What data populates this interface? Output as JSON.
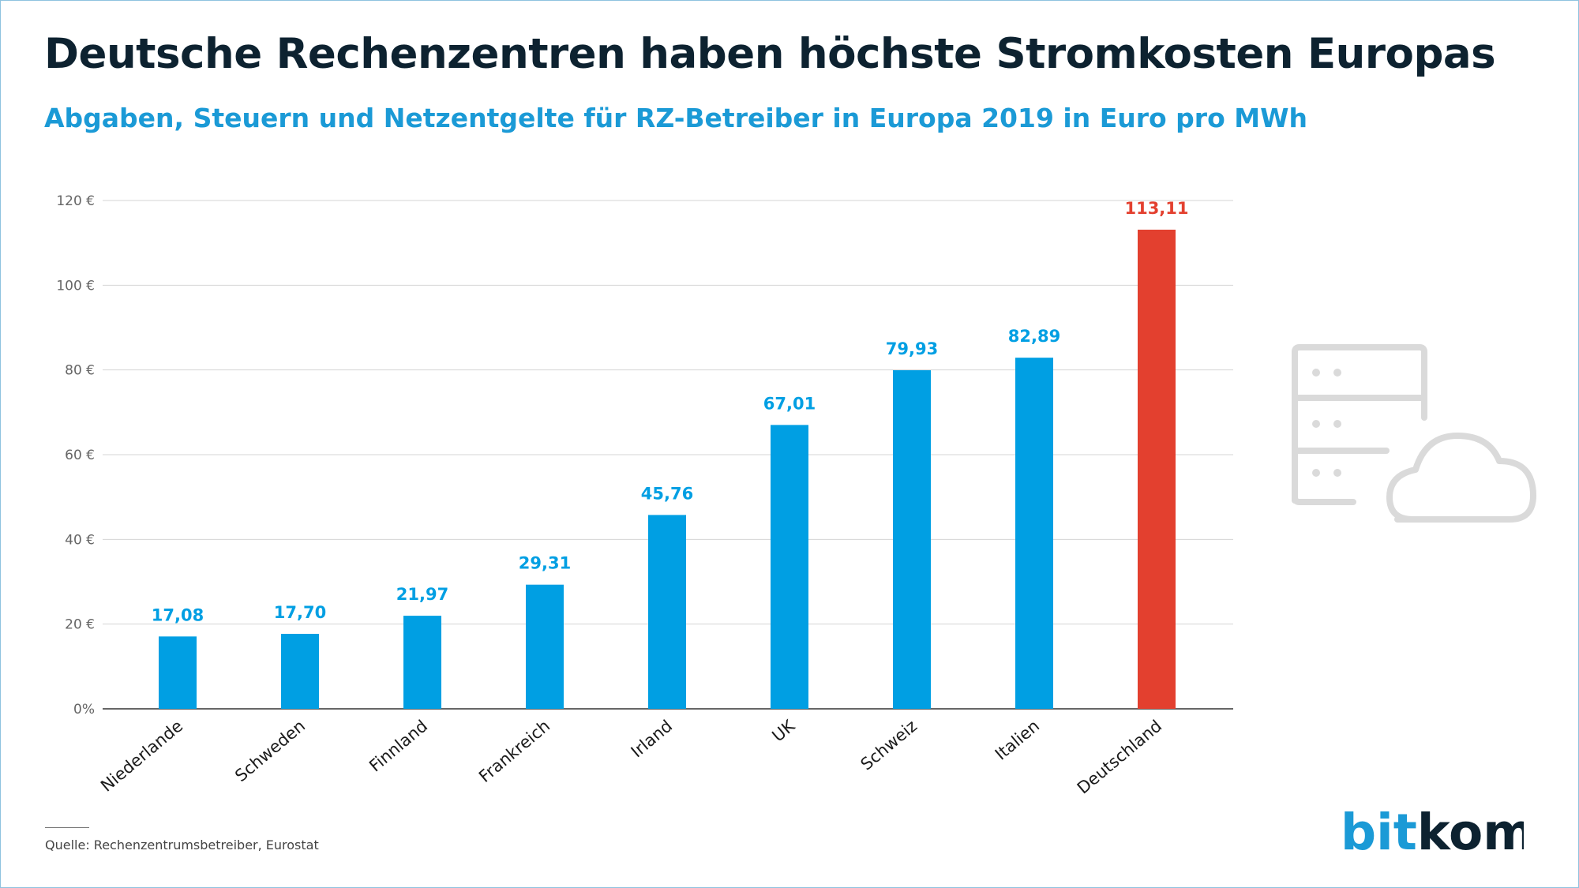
{
  "title": "Deutsche Rechenzentren haben höchste Stromkosten Europas",
  "subtitle": "Abgaben, Steuern und Netzentgelte für RZ-Betreiber in Europa 2019 in Euro pro MWh",
  "source": "Quelle: Rechenzentrumsbetreiber, Eurostat",
  "logo": {
    "part1": "bit",
    "part2": "kom"
  },
  "icon": "server-cloud-icon",
  "colors": {
    "bar": "#009fe3",
    "highlight": "#e3402f",
    "title": "#0d2230",
    "subtitle": "#1b9ad6",
    "icon": "#dadada",
    "logo_bit": "#1b9ad6",
    "logo_kom": "#0d2230"
  },
  "chart_data": {
    "type": "bar",
    "categories": [
      "Niederlande",
      "Schweden",
      "Finnland",
      "Frankreich",
      "Irland",
      "UK",
      "Schweiz",
      "Italien",
      "Deutschland"
    ],
    "values": [
      17.08,
      17.7,
      21.97,
      29.31,
      45.76,
      67.01,
      79.93,
      82.89,
      113.11
    ],
    "value_labels": [
      "17,08",
      "17,70",
      "21,97",
      "29,31",
      "45,76",
      "67,01",
      "79,93",
      "82,89",
      "113,11"
    ],
    "highlight": [
      "Deutschland"
    ],
    "ylim": [
      0,
      120
    ],
    "yticks": [
      0,
      20,
      40,
      60,
      80,
      100,
      120
    ],
    "ytick_labels": [
      "0%",
      "20 €",
      "40 €",
      "60 €",
      "80 €",
      "100 €",
      "120 €"
    ],
    "xlabel": "",
    "ylabel": "",
    "grid": true,
    "legend": "none"
  }
}
